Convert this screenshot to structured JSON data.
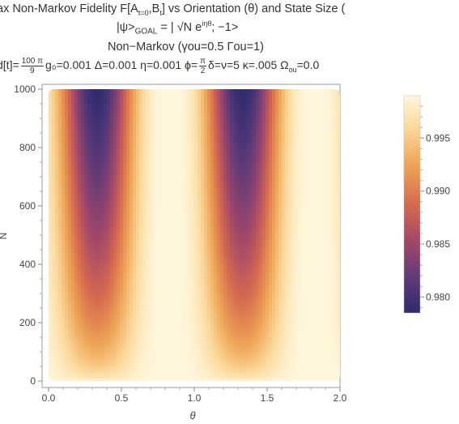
{
  "chart_data": {
    "type": "heatmap",
    "title": {
      "line1": "ax Non-Markov Fidelity F[A",
      "line1_sub_a": "t=0",
      "line1_mid": ",B",
      "line1_sub_b": "t",
      "line1_end": "] vs Orientation (θ) and State Size (",
      "line2_pre": "|ψ>",
      "line2_sub": "GOAL",
      "line2_mid": " = | √N e",
      "line2_sup": "iηθ",
      "line2_end": "; −1>",
      "line3": "Non−Markov (γou=0.5 Γou=1)",
      "line4_pre": "d[t]=",
      "line4_frac1_num": "100 π",
      "line4_frac1_den": "9",
      "line4_mid": "g₀=0.001 Δ=0.001 η=0.001 ϕ=",
      "line4_frac2_num": "π",
      "line4_frac2_den": "2",
      "line4_end": "δ=ν=5 κ=.005 Ω",
      "line4_sub": "ou",
      "line4_tail": "=0.0"
    },
    "xlabel": "θ",
    "ylabel": "N",
    "xlim": [
      0,
      2
    ],
    "ylim": [
      0,
      1000
    ],
    "x_ticks": [
      "0.0",
      "0.5",
      "1.0",
      "1.5",
      "2.0"
    ],
    "y_ticks": [
      "0",
      "200",
      "400",
      "600",
      "800",
      "1000"
    ],
    "colorbar": {
      "range": [
        0.9785,
        0.999
      ],
      "ticks": [
        "0.980",
        "0.985",
        "0.990",
        "0.995"
      ]
    },
    "minima_theta": [
      0.333,
      1.333
    ],
    "maxima_theta": [
      0.833,
      1.833
    ],
    "min_fidelity_at_N1000": 0.9785,
    "max_fidelity": 0.999
  }
}
